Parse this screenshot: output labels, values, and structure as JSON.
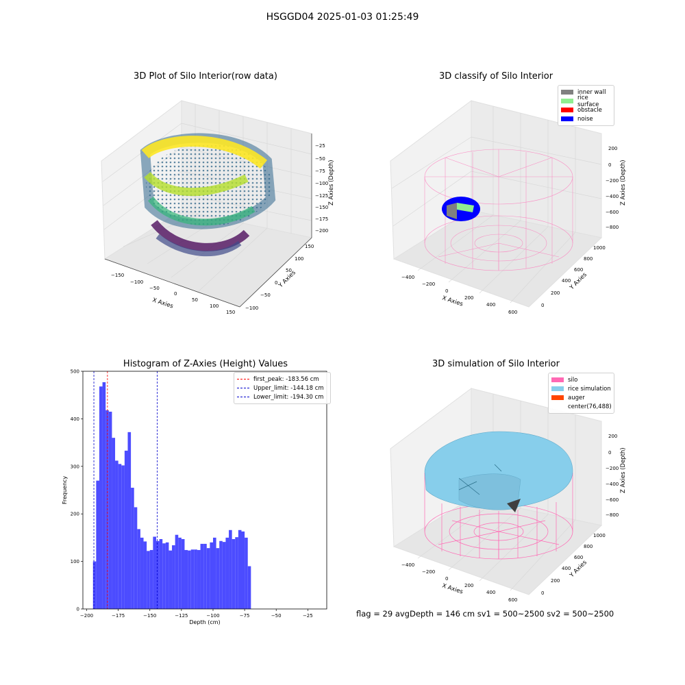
{
  "suptitle": "HSGGD04 2025-01-03 01:25:49",
  "footer": "flag = 29  avgDepth = 146 cm  sv1 = 500~2500  sv2 = 500~2500",
  "colors": {
    "histogram_bar": "#4c4cff",
    "first_peak_line": "#ff0000",
    "limit_lines": "#0000cc",
    "inner_wall": "#808080",
    "rice_surface": "#90ee90",
    "obstacle": "#ff0000",
    "noise": "#0000ff",
    "silo": "#ff69b4",
    "rice_simulation": "#87ceeb",
    "auger": "#ff4500"
  },
  "chart_data": [
    {
      "type": "scatter",
      "projection": "3d",
      "title": "3D Plot of Silo Interior(row data)",
      "xlabel": "X Axies",
      "ylabel": "Y Axies",
      "zlabel": "Z Axies (Depth)",
      "xticks": [
        "−150",
        "−100",
        "−50",
        "0",
        "50",
        "100",
        "150"
      ],
      "yticks": [
        "−100",
        "−50",
        "0",
        "50",
        "100",
        "150"
      ],
      "zticks": [
        "−25",
        "−50",
        "−75",
        "−100",
        "−125",
        "−150",
        "−175",
        "−200"
      ],
      "xlim": [
        -160,
        160
      ],
      "ylim": [
        -110,
        160
      ],
      "zlim": [
        -205,
        -20
      ],
      "colormap": "viridis",
      "description_points": "ring-shaped cloud of points colored by depth"
    },
    {
      "type": "scatter",
      "projection": "3d",
      "title": "3D classify of Silo Interior",
      "xlabel": "X Axies",
      "ylabel": "Y Axies",
      "zlabel": "Z Axies (Depth)",
      "xticks": [
        "−400",
        "−200",
        "0",
        "200",
        "400",
        "600"
      ],
      "yticks": [
        "0",
        "200",
        "400",
        "600",
        "800",
        "1000"
      ],
      "zticks": [
        "200",
        "0",
        "−200",
        "−400",
        "−600",
        "−800"
      ],
      "legend": [
        "inner wall",
        "rice surface",
        "obstacle",
        "noise"
      ],
      "legend_loc": "upper right"
    },
    {
      "type": "bar",
      "title": "Histogram of Z-Axies (Height) Values",
      "xlabel": "Depth (cm)",
      "ylabel": "Frequency",
      "bin_start": -195,
      "bin_width": 2.5,
      "values": [
        100,
        270,
        468,
        477,
        418,
        415,
        360,
        312,
        305,
        302,
        333,
        372,
        255,
        214,
        168,
        150,
        142,
        122,
        124,
        152,
        143,
        147,
        138,
        140,
        123,
        134,
        156,
        150,
        147,
        124,
        123,
        125,
        125,
        124,
        137,
        137,
        128,
        140,
        150,
        128,
        143,
        141,
        150,
        166,
        147,
        151,
        166,
        163,
        150,
        90
      ],
      "xlim": [
        -203,
        -10
      ],
      "ylim": [
        0,
        500
      ],
      "xticks": [
        -200,
        -175,
        -150,
        -125,
        -100,
        -75,
        -50,
        -25
      ],
      "xtick_labels": [
        "−200",
        "−175",
        "−150",
        "−125",
        "−100",
        "−75",
        "−50",
        "−25"
      ],
      "yticks": [
        0,
        100,
        200,
        300,
        400,
        500
      ],
      "ytick_labels": [
        "0",
        "100",
        "200",
        "300",
        "400",
        "500"
      ],
      "vlines": [
        {
          "label": "first_peak: -183.56 cm",
          "x": -183.56,
          "color": "#ff0000"
        },
        {
          "label": "Upper_limit: -144.18 cm",
          "x": -144.18,
          "color": "#0000cc"
        },
        {
          "label": "Lower_limit: -194.30 cm",
          "x": -194.3,
          "color": "#0000cc"
        }
      ],
      "legend_loc": "upper right"
    },
    {
      "type": "surface",
      "projection": "3d",
      "title": "3D simulation of Silo Interior",
      "xlabel": "X Axies",
      "ylabel": "Y Axies",
      "zlabel": "Z Axies (Depth)",
      "xticks": [
        "−400",
        "−200",
        "0",
        "200",
        "400",
        "600"
      ],
      "yticks": [
        "0",
        "200",
        "400",
        "600",
        "800",
        "1000"
      ],
      "zticks": [
        "200",
        "0",
        "−200",
        "−400",
        "−600",
        "−800"
      ],
      "legend": [
        "silo",
        "rice simulation",
        "auger",
        "center(76,488)"
      ],
      "legend_loc": "upper right"
    }
  ]
}
